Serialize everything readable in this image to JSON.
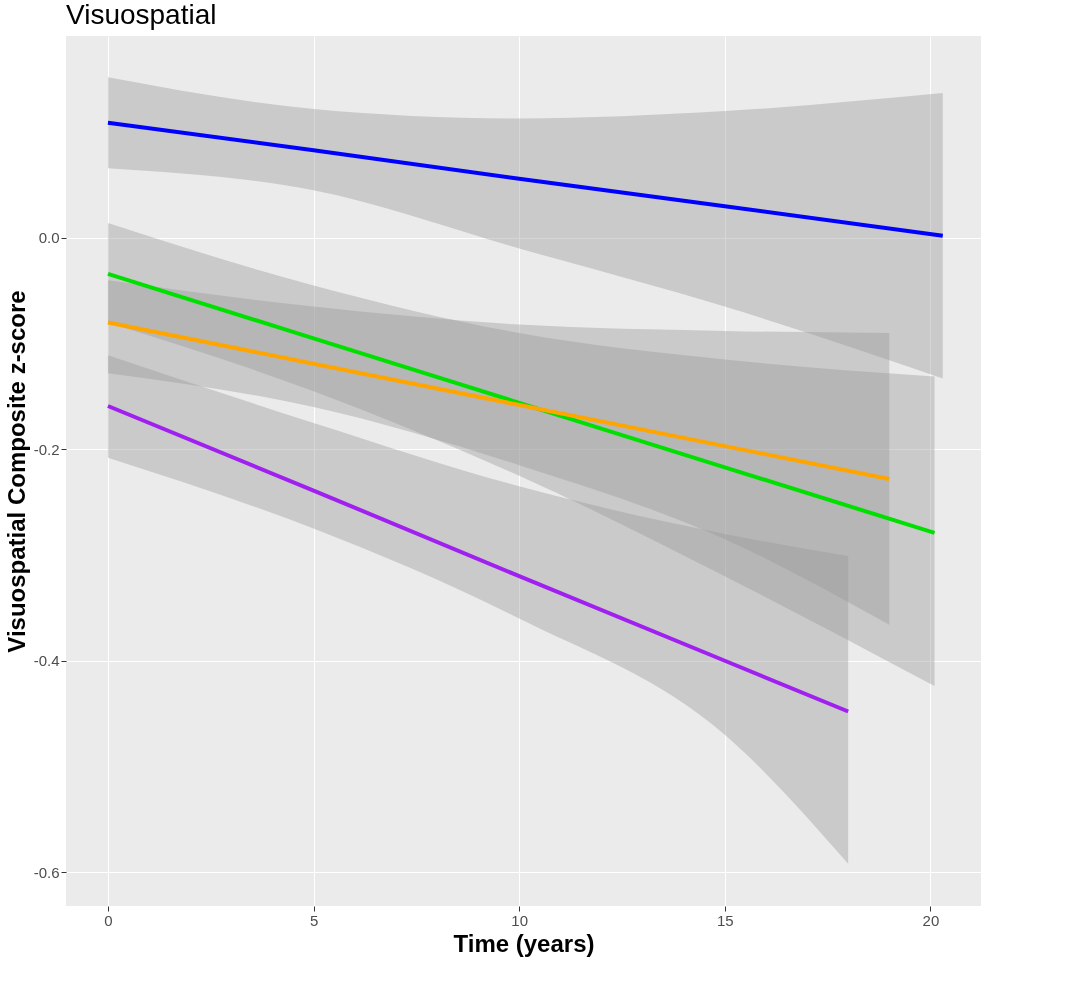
{
  "chart_data": {
    "type": "line",
    "title": "Visuospatial",
    "xlabel": "Time (years)",
    "ylabel": "Visuospatial Composite z-score",
    "xlim": [
      -1.02,
      21.23
    ],
    "ylim": [
      -0.632,
      0.191
    ],
    "xticks": [
      0,
      5,
      10,
      15,
      20
    ],
    "yticks": [
      -0.6,
      -0.4,
      -0.2,
      {
        "value": 0,
        "label": "0.0"
      }
    ],
    "grid": true,
    "legend": false,
    "marker": "none",
    "line_style": "solid",
    "series": [
      {
        "color": "#0000ff",
        "x": [
          0,
          5,
          10,
          15,
          20.3
        ],
        "values": [
          0.109,
          0.083,
          0.056,
          0.03,
          0.002
        ],
        "lower": [
          0.066,
          0.045,
          -0.01,
          -0.065,
          -0.133
        ],
        "upper": [
          0.152,
          0.122,
          0.113,
          0.12,
          0.137
        ]
      },
      {
        "color": "#00e000",
        "x": [
          0,
          5,
          10,
          15,
          20.1
        ],
        "values": [
          -0.034,
          -0.095,
          -0.156,
          -0.217,
          -0.279
        ],
        "lower": [
          -0.08,
          -0.145,
          -0.225,
          -0.32,
          -0.424
        ],
        "upper": [
          0.014,
          -0.045,
          -0.09,
          -0.115,
          -0.131
        ]
      },
      {
        "color": "#ffa500",
        "x": [
          0,
          5,
          10,
          15,
          19
        ],
        "values": [
          -0.08,
          -0.119,
          -0.158,
          -0.197,
          -0.228
        ],
        "lower": [
          -0.128,
          -0.16,
          -0.215,
          -0.285,
          -0.366
        ],
        "upper": [
          -0.04,
          -0.065,
          -0.082,
          -0.088,
          -0.09
        ]
      },
      {
        "color": "#a020f0",
        "x": [
          0,
          5,
          10,
          15,
          18
        ],
        "values": [
          -0.159,
          -0.239,
          -0.32,
          -0.4,
          -0.448
        ],
        "lower": [
          -0.208,
          -0.275,
          -0.36,
          -0.47,
          -0.592
        ],
        "upper": [
          -0.111,
          -0.175,
          -0.235,
          -0.28,
          -0.301
        ]
      }
    ]
  }
}
